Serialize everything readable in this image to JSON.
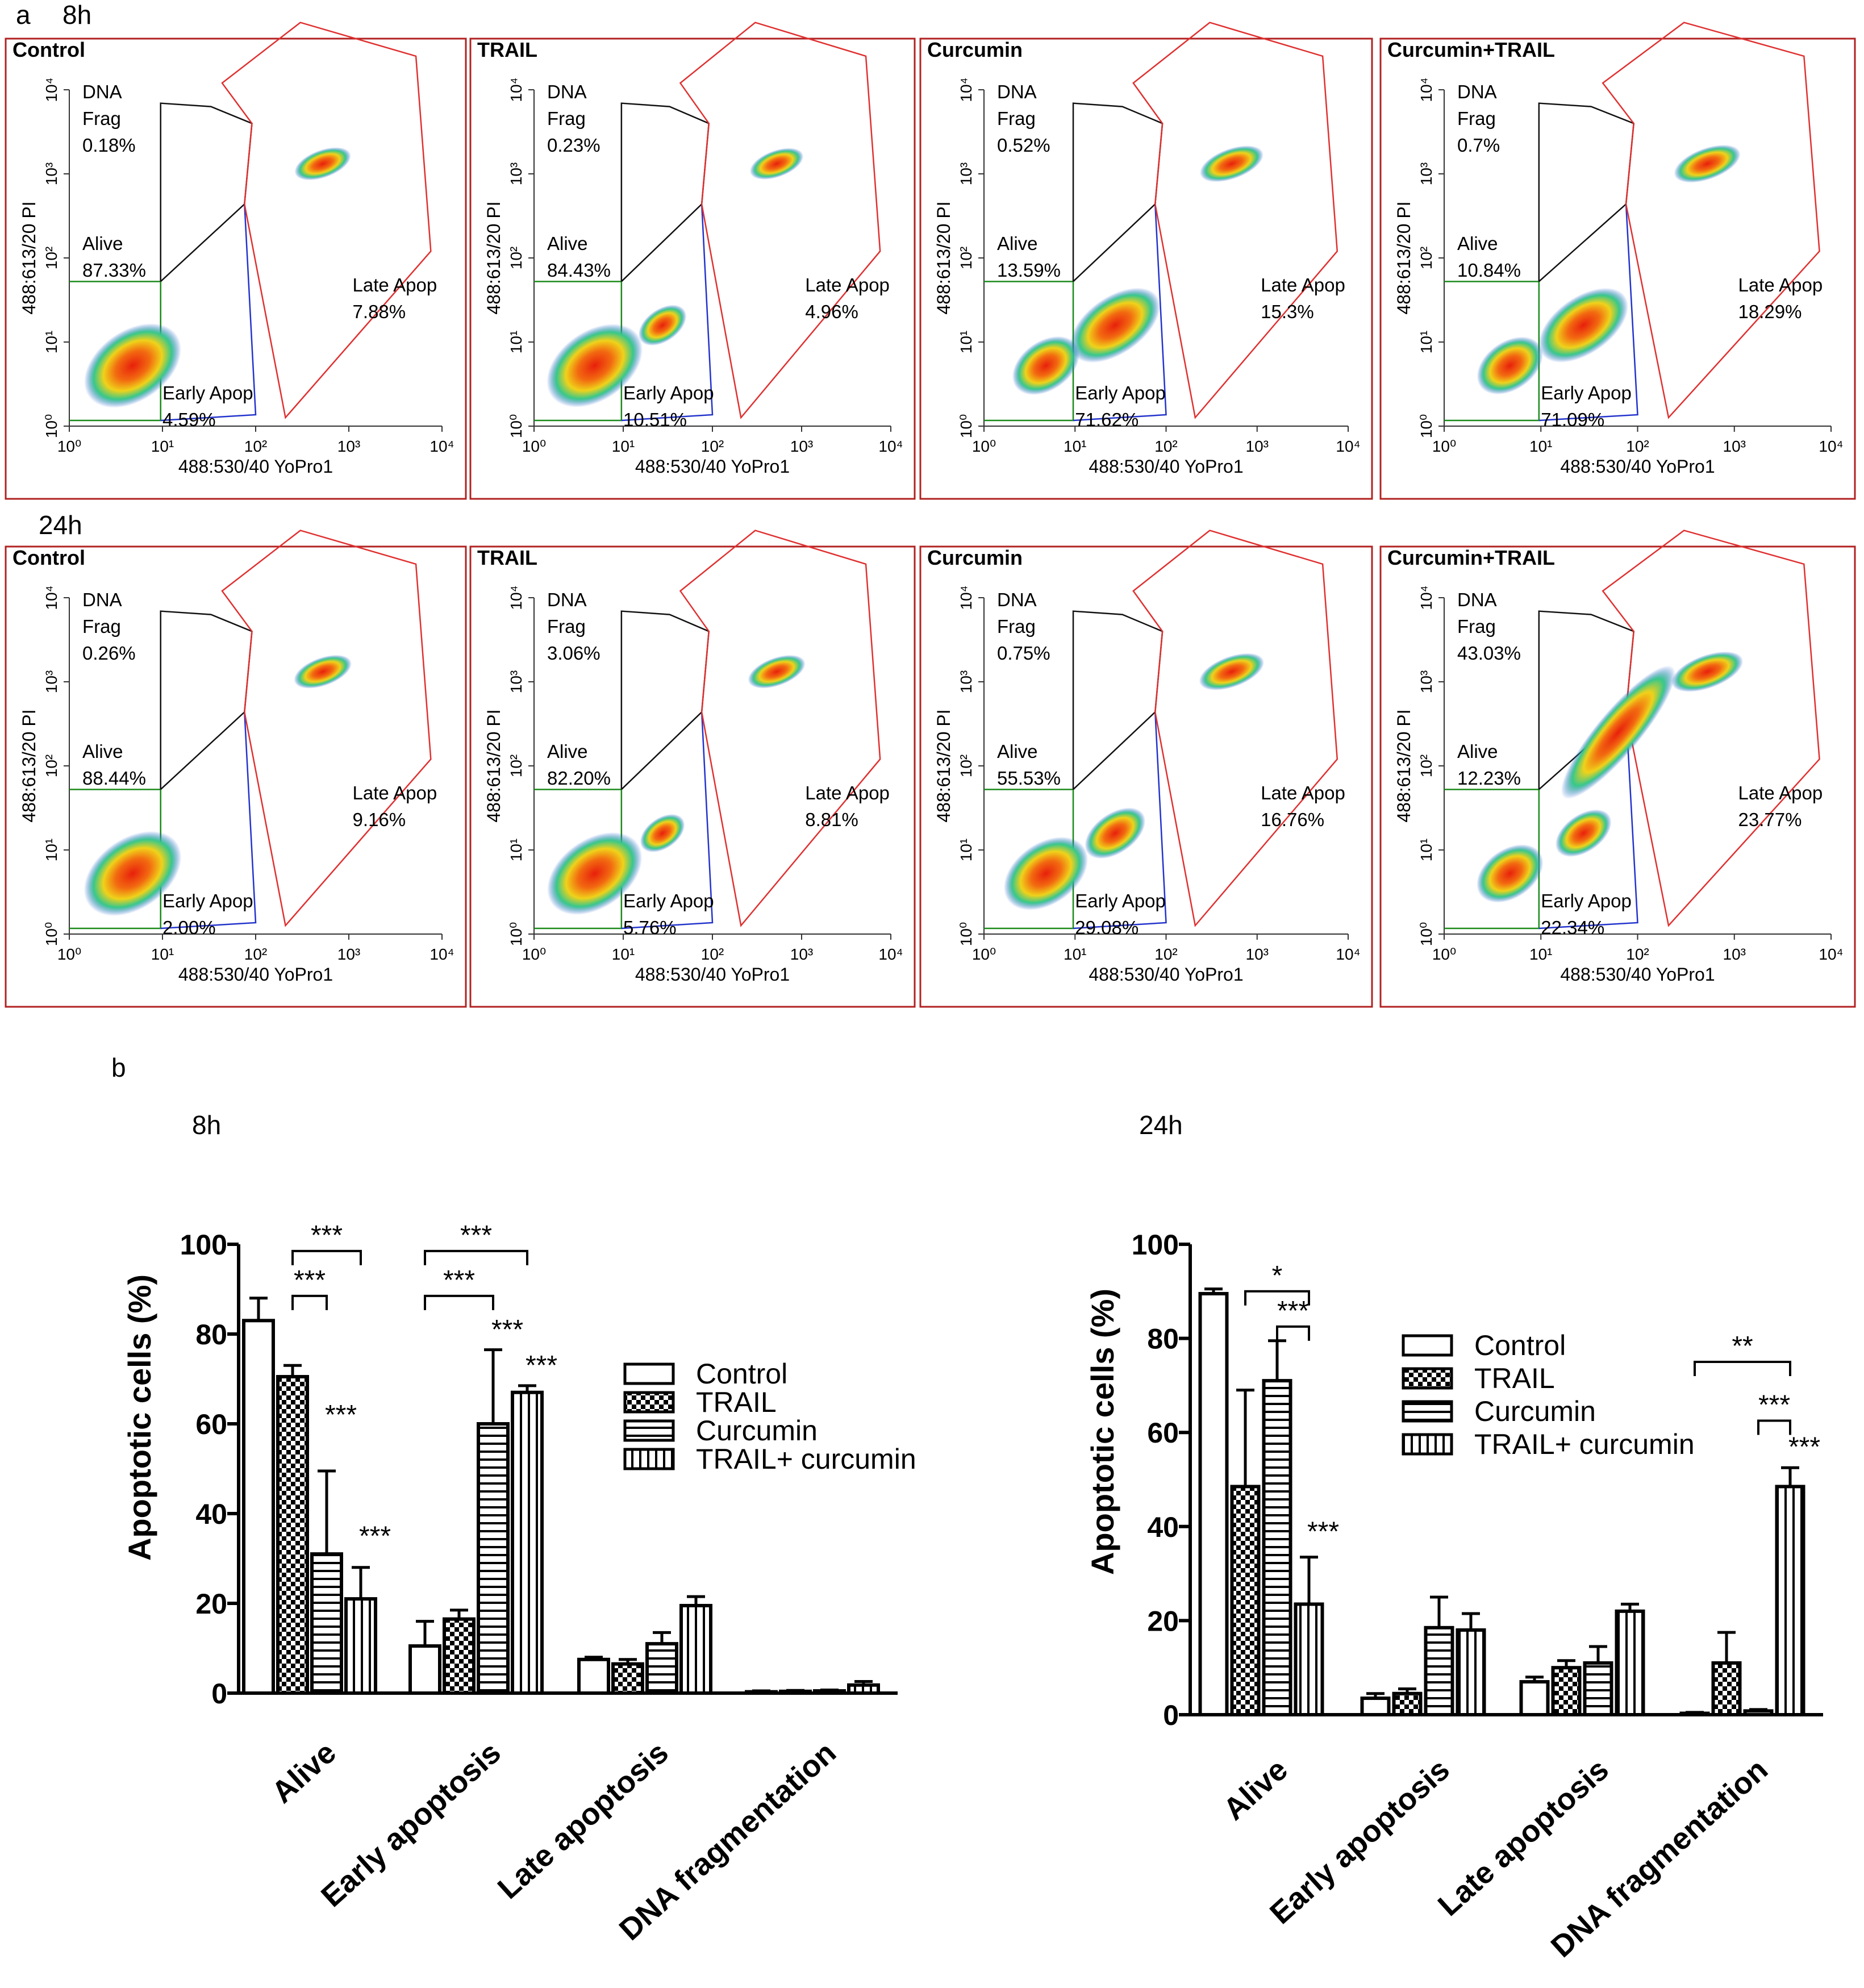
{
  "panel_a": {
    "label": "a",
    "axis_x_label": "488:530/40 YoPro1",
    "axis_y_label": "488:613/20 PI",
    "ticks": [
      "10⁰",
      "10¹",
      "10²",
      "10³",
      "10⁴"
    ],
    "gate_names": {
      "dna1": "DNA",
      "dna2": "Frag",
      "alive": "Alive",
      "early": "Early Apop",
      "late": "Late Apop"
    },
    "rows": [
      {
        "time": "8h",
        "plots": [
          {
            "title": "Control",
            "dna": "0.18%",
            "alive": "87.33%",
            "early": "4.59%",
            "late": "7.88%"
          },
          {
            "title": "TRAIL",
            "dna": "0.23%",
            "alive": "84.43%",
            "early": "10.51%",
            "late": "4.96%"
          },
          {
            "title": "Curcumin",
            "dna": "0.52%",
            "alive": "13.59%",
            "early": "71.62%",
            "late": "15.3%"
          },
          {
            "title": "Curcumin+TRAIL",
            "dna": "0.7%",
            "alive": "10.84%",
            "early": "71.09%",
            "late": "18.29%"
          }
        ]
      },
      {
        "time": "24h",
        "plots": [
          {
            "title": "Control",
            "dna": "0.26%",
            "alive": "88.44%",
            "early": "2.00%",
            "late": "9.16%"
          },
          {
            "title": "TRAIL",
            "dna": "3.06%",
            "alive": "82.20%",
            "early": "5.76%",
            "late": "8.81%"
          },
          {
            "title": "Curcumin",
            "dna": "0.75%",
            "alive": "55.53%",
            "early": "29.08%",
            "late": "16.76%"
          },
          {
            "title": "Curcumin+TRAIL",
            "dna": "43.03%",
            "alive": "12.23%",
            "early": "22.34%",
            "late": "23.77%"
          }
        ]
      }
    ]
  },
  "panel_b": {
    "label": "b"
  },
  "chart_data": [
    {
      "type": "bar",
      "title": "8h",
      "xlabel": "",
      "ylabel": "Apoptotic cells (%)",
      "ylim": [
        0,
        100
      ],
      "yticks": [
        0,
        20,
        40,
        60,
        80,
        100
      ],
      "categories": [
        "Alive",
        "Early apoptosis",
        "Late apoptosis",
        "DNA fragmentation"
      ],
      "series": [
        {
          "name": "Control",
          "pattern": "open",
          "values": [
            83,
            10.5,
            7.5,
            0.3
          ],
          "errors": [
            5,
            5.5,
            0.5,
            0.2
          ]
        },
        {
          "name": "TRAIL",
          "pattern": "check",
          "values": [
            70.5,
            16.5,
            6.5,
            0.4
          ],
          "errors": [
            2.5,
            2,
            1,
            0.2
          ]
        },
        {
          "name": "Curcumin",
          "pattern": "hlines",
          "values": [
            31,
            60,
            11,
            0.5
          ],
          "errors": [
            18.5,
            16.5,
            2.5,
            0.2
          ]
        },
        {
          "name": "TRAIL+ curcumin",
          "pattern": "vlines",
          "values": [
            21,
            67,
            19.5,
            1.8
          ],
          "errors": [
            7,
            1.5,
            2,
            0.8
          ]
        }
      ],
      "legend": "center-right",
      "significance": [
        {
          "label": "***",
          "type": "bracket",
          "group": 0,
          "from": 1,
          "to": 3,
          "level": 98.5
        },
        {
          "label": "***",
          "type": "bracket",
          "group": 0,
          "from": 1,
          "to": 2,
          "level": 88.5
        },
        {
          "label": "***",
          "type": "star",
          "group": 0,
          "series": 2,
          "y": 60
        },
        {
          "label": "***",
          "type": "star",
          "group": 0,
          "series": 3,
          "y": 33
        },
        {
          "label": "***",
          "type": "bracket",
          "group": 1,
          "from": 0,
          "to": 3,
          "level": 98.5
        },
        {
          "label": "***",
          "type": "bracket",
          "group": 1,
          "from": 0,
          "to": 2,
          "level": 88.5
        },
        {
          "label": "***",
          "type": "star",
          "group": 1,
          "series": 2,
          "y": 79
        },
        {
          "label": "***",
          "type": "star",
          "group": 1,
          "series": 3,
          "y": 71
        }
      ]
    },
    {
      "type": "bar",
      "title": "24h",
      "xlabel": "",
      "ylabel": "Apoptotic cells (%)",
      "ylim": [
        0,
        100
      ],
      "yticks": [
        0,
        20,
        40,
        60,
        80,
        100
      ],
      "categories": [
        "Alive",
        "Early apoptosis",
        "Late apoptosis",
        "DNA fragmentation"
      ],
      "series": [
        {
          "name": "Control",
          "pattern": "open",
          "values": [
            89.5,
            3.5,
            7,
            0.3
          ],
          "errors": [
            1,
            1,
            1,
            0.2
          ]
        },
        {
          "name": "TRAIL",
          "pattern": "check",
          "values": [
            48.5,
            4.5,
            10,
            11
          ],
          "errors": [
            20.5,
            1,
            1.5,
            6.5
          ]
        },
        {
          "name": "Curcumin",
          "pattern": "hlines",
          "values": [
            71,
            18.5,
            11,
            0.8
          ],
          "errors": [
            8.5,
            6.5,
            3.5,
            0.3
          ]
        },
        {
          "name": "TRAIL+ curcumin",
          "pattern": "vlines",
          "values": [
            23.5,
            18,
            22,
            48.5
          ],
          "errors": [
            10,
            3.5,
            1.5,
            4
          ]
        }
      ],
      "legend": "top-right",
      "significance": [
        {
          "label": "*",
          "type": "bracket",
          "group": 0,
          "from": 1,
          "to": 3,
          "level": 90
        },
        {
          "label": "***",
          "type": "bracket",
          "group": 0,
          "from": 2,
          "to": 3,
          "level": 82.5
        },
        {
          "label": "***",
          "type": "star",
          "group": 0,
          "series": 3,
          "y": 37
        },
        {
          "label": "**",
          "type": "bracket",
          "group": 3,
          "from": 0,
          "to": 3,
          "level": 75
        },
        {
          "label": "***",
          "type": "bracket",
          "group": 3,
          "from": 2,
          "to": 3,
          "level": 62.5
        },
        {
          "label": "***",
          "type": "star",
          "group": 3,
          "series": 3,
          "y": 55
        }
      ]
    }
  ]
}
